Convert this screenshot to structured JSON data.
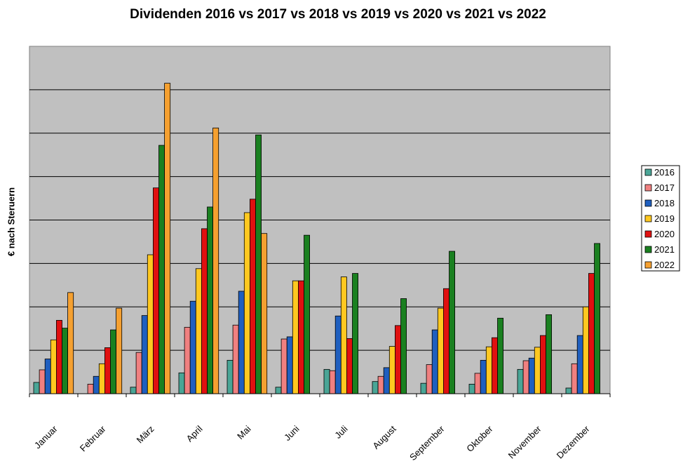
{
  "chart_data": {
    "type": "bar",
    "title": "Dividenden 2016 vs 2017 vs 2018 vs 2019 vs 2020 vs 2021 vs 2022",
    "ylabel": "€ nach Steruern",
    "xlabel": "",
    "ylim": [
      0,
      8
    ],
    "grid": true,
    "legend_position": "right",
    "categories": [
      "Januar",
      "Februar",
      "März",
      "April",
      "Mai",
      "Juni",
      "Juli",
      "August",
      "September",
      "Oktober",
      "November",
      "Dezember"
    ],
    "series": [
      {
        "name": "2016",
        "color": "#4aa596",
        "values": [
          0.26,
          0.0,
          0.15,
          0.48,
          0.77,
          0.15,
          0.56,
          0.28,
          0.24,
          0.22,
          0.56,
          0.13
        ]
      },
      {
        "name": "2017",
        "color": "#f08080",
        "values": [
          0.55,
          0.22,
          0.95,
          1.53,
          1.58,
          1.26,
          0.53,
          0.4,
          0.67,
          0.47,
          0.76,
          0.69
        ]
      },
      {
        "name": "2018",
        "color": "#1f5fbf",
        "values": [
          0.8,
          0.4,
          1.8,
          2.13,
          2.36,
          1.31,
          1.79,
          0.6,
          1.47,
          0.77,
          0.82,
          1.34
        ]
      },
      {
        "name": "2019",
        "color": "#ffc820",
        "values": [
          1.24,
          0.69,
          3.2,
          2.88,
          4.17,
          2.6,
          2.69,
          1.09,
          1.97,
          1.08,
          1.07,
          2.0
        ]
      },
      {
        "name": "2020",
        "color": "#e01010",
        "values": [
          1.69,
          1.06,
          4.74,
          3.8,
          4.48,
          2.6,
          1.27,
          1.57,
          2.42,
          1.29,
          1.34,
          2.77
        ]
      },
      {
        "name": "2021",
        "color": "#1a8020",
        "values": [
          1.51,
          1.47,
          5.72,
          4.3,
          5.96,
          3.65,
          2.77,
          2.19,
          3.28,
          1.74,
          1.82,
          3.46
        ]
      },
      {
        "name": "2022",
        "color": "#f5a030",
        "values": [
          2.33,
          1.97,
          7.15,
          6.12,
          3.69,
          0,
          0,
          0,
          0,
          0,
          0,
          0
        ]
      }
    ]
  }
}
